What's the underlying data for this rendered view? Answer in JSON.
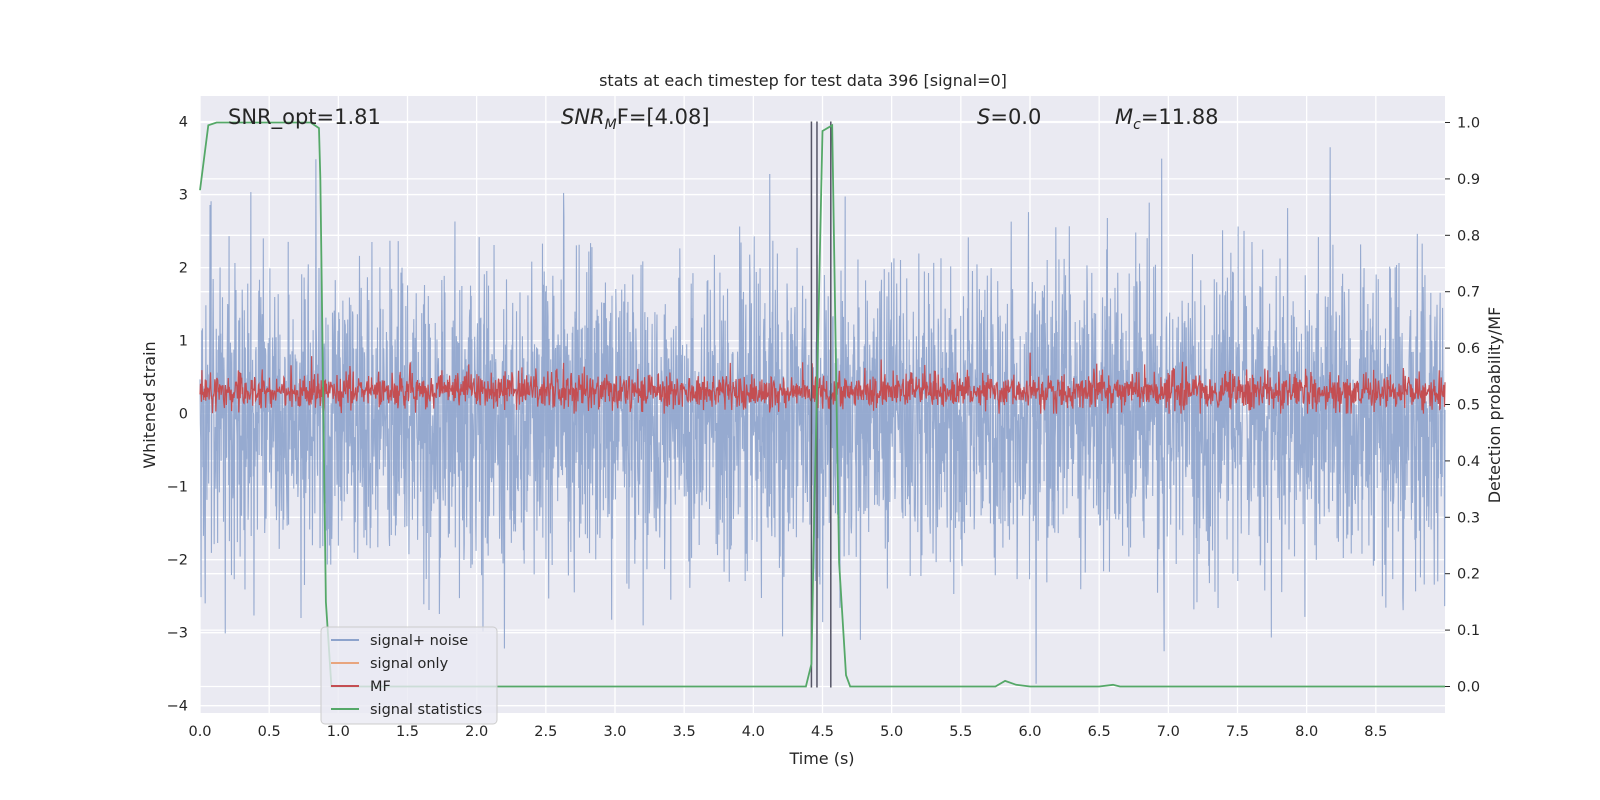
{
  "chart_data": {
    "type": "line",
    "title": "stats at each timestep for test data 396 [signal=0]",
    "xlabel": "Time (s)",
    "ylabel": "Whitened strain",
    "y2label": "Detection probability/MF",
    "xlim": [
      0.0,
      9.0
    ],
    "ylim": [
      -4.1,
      4.35
    ],
    "y2lim": [
      -0.047,
      1.047
    ],
    "grid": true,
    "legend_placement": "lower-left",
    "x_ticks": [
      "0.0",
      "0.5",
      "1.0",
      "1.5",
      "2.0",
      "2.5",
      "3.0",
      "3.5",
      "4.0",
      "4.5",
      "5.0",
      "5.5",
      "6.0",
      "6.5",
      "7.0",
      "7.5",
      "8.0",
      "8.5"
    ],
    "y_ticks": [
      "4",
      "3",
      "2",
      "1",
      "0",
      "−1",
      "−2",
      "−3",
      "−4"
    ],
    "y2_ticks": [
      "1.0",
      "0.9",
      "0.8",
      "0.7",
      "0.6",
      "0.5",
      "0.4",
      "0.3",
      "0.2",
      "0.1",
      "0.0"
    ],
    "annotations": {
      "snr_opt": "SNR_opt=1.81",
      "snr_mf_main": "SNR",
      "snr_mf_sub": "M",
      "snr_mf_rest": "F=[4.08]",
      "s_main": "S",
      "s_rest": "=0.0",
      "mc_main": "M",
      "mc_sub": "c",
      "mc_rest": "=11.88"
    },
    "series": [
      {
        "name": "signal+ noise",
        "color": "#8da3cc",
        "axis": "left",
        "description_range": [
          -3.7,
          3.9
        ]
      },
      {
        "name": "signal only",
        "color": "#e8a57e",
        "axis": "left",
        "values": []
      },
      {
        "name": "MF",
        "color": "#c44e52",
        "axis": "left",
        "description_range": [
          0.0,
          0.85
        ]
      },
      {
        "name": "signal statistics",
        "color": "#55a868",
        "axis": "right",
        "x": [
          0.0,
          0.06,
          0.12,
          0.2,
          0.4,
          0.6,
          0.8,
          0.86,
          0.87,
          0.91,
          0.95,
          1.0,
          2.0,
          3.0,
          4.0,
          4.38,
          4.42,
          4.44,
          4.5,
          4.57,
          4.62,
          4.67,
          4.7,
          5.0,
          5.5,
          5.75,
          5.82,
          5.9,
          6.0,
          6.5,
          6.6,
          6.65,
          7.0,
          7.5,
          8.0,
          8.5,
          9.0
        ],
        "y": [
          0.88,
          0.995,
          1.0,
          1.0,
          1.0,
          1.0,
          1.0,
          0.99,
          0.9,
          0.15,
          0.0,
          0.0,
          0.0,
          0.0,
          0.0,
          0.0,
          0.04,
          0.3,
          0.985,
          0.995,
          0.22,
          0.02,
          0.0,
          0.0,
          0.0,
          0.0,
          0.01,
          0.003,
          0.0,
          0.0,
          0.003,
          0.0,
          0.0,
          0.0,
          0.0,
          0.0,
          0.0
        ]
      }
    ],
    "vertical_lines_x": [
      4.42,
      4.46,
      4.56
    ]
  }
}
